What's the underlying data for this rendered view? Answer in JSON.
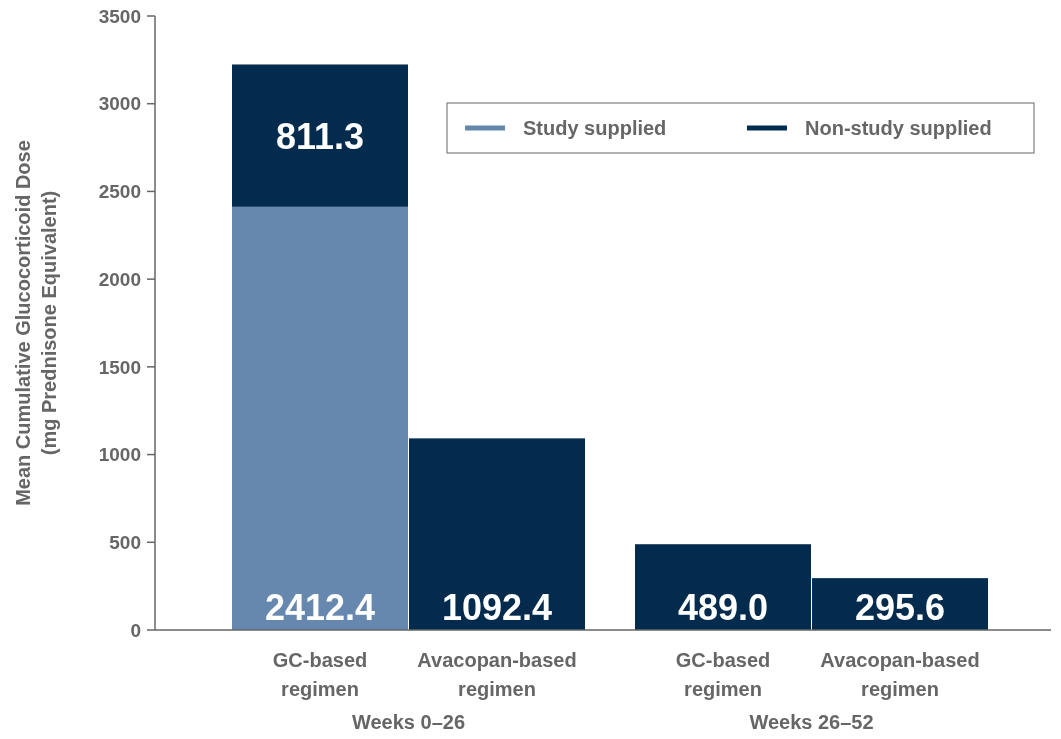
{
  "chart_data": {
    "type": "bar",
    "stacked": true,
    "ylabel": "Mean Cumulative Glucocorticoid Dose\n(mg Prednisone Equivalent)",
    "categories": [
      "GC-based regimen",
      "Avacopan-based regimen",
      "GC-based regimen",
      "Avacopan-based regimen"
    ],
    "series": [
      {
        "name": "Study supplied",
        "color": "#6688ae",
        "values": [
          2412.4,
          null,
          null,
          null
        ],
        "value_labels": [
          "2412.4",
          null,
          null,
          null
        ]
      },
      {
        "name": "Non-study supplied",
        "color": "#022b4d",
        "values": [
          811.3,
          1092.4,
          489.0,
          295.6
        ],
        "value_labels": [
          "811.3",
          "1092.4",
          "489.0",
          "295.6"
        ]
      }
    ],
    "ylim": [
      0,
      3500
    ],
    "yticks": [
      0,
      500,
      1000,
      1500,
      2000,
      2500,
      3000,
      3500
    ],
    "grid": false,
    "legend": "top right",
    "annotations": [
      "Weeks 0–26",
      "Weeks 26–52"
    ]
  }
}
